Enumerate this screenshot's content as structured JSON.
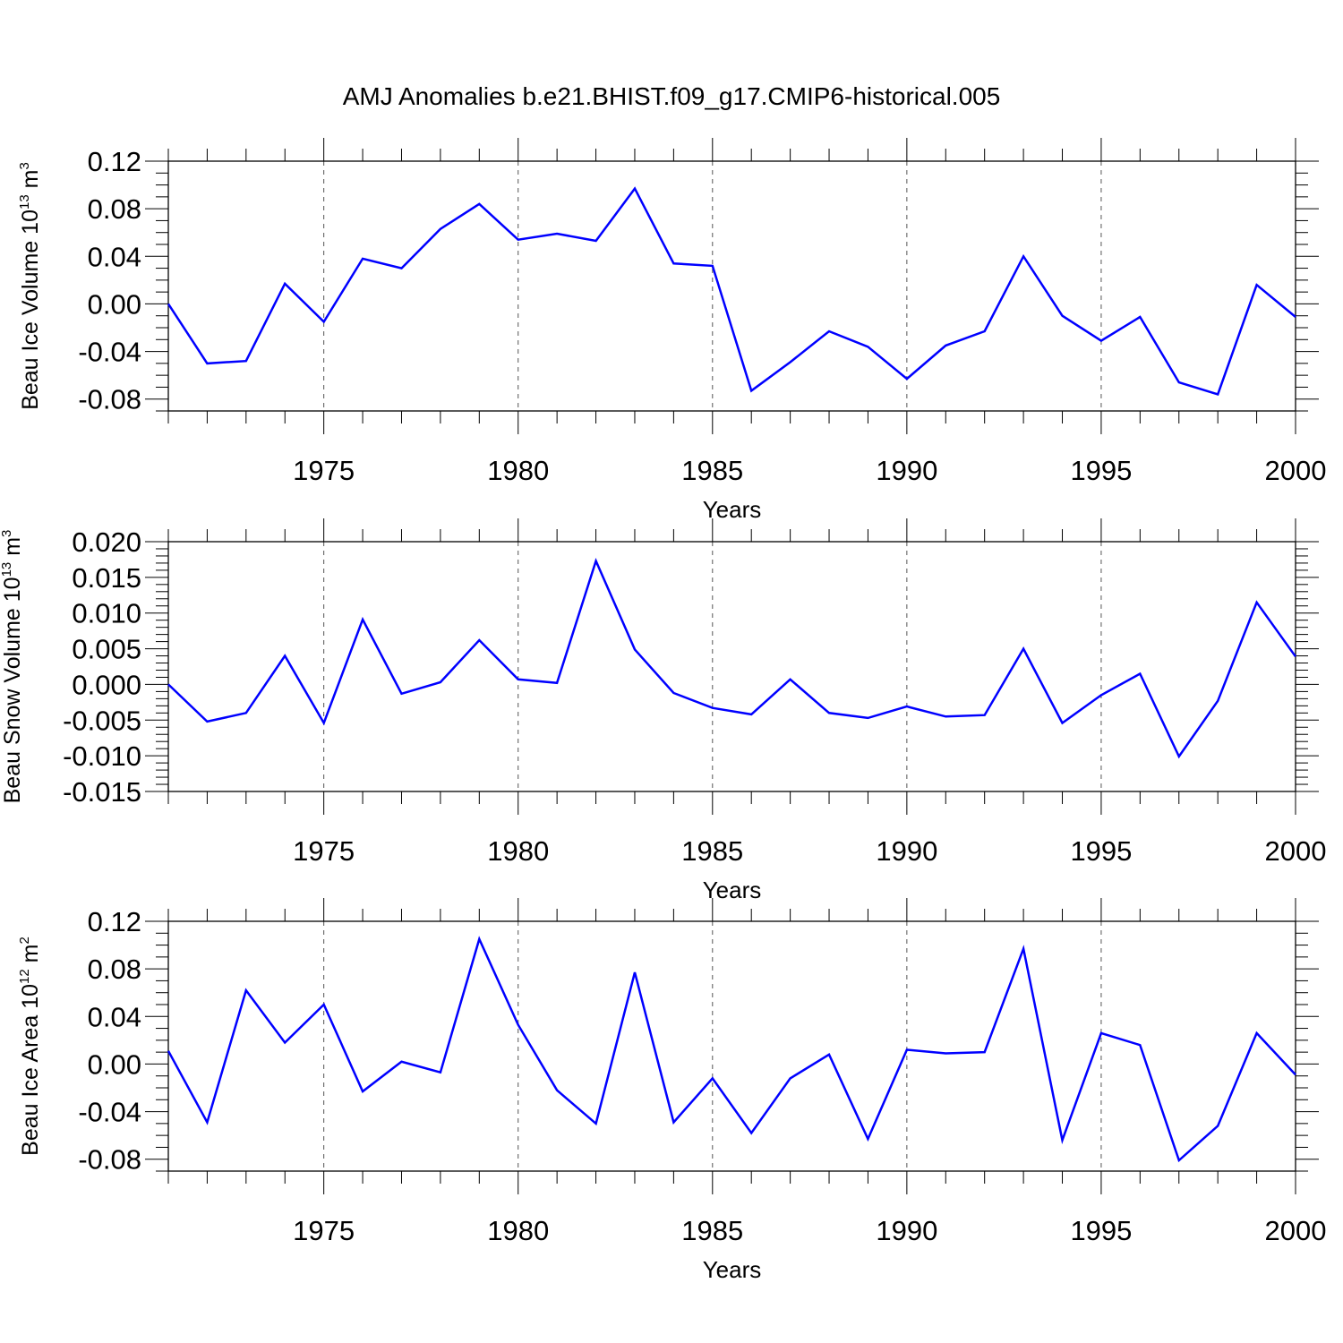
{
  "title": "AMJ Anomalies b.e21.BHIST.f09_g17.CMIP6-historical.005",
  "style": {
    "line_color": "#0000ff",
    "axis_color": "#000000",
    "grid_color": "#555555"
  },
  "chart_data": [
    {
      "type": "line",
      "title": "AMJ Anomalies b.e21.BHIST.f09_g17.CMIP6-historical.005",
      "xlabel": "Years",
      "ylabel": {
        "text": "Beau Ice Volume 10",
        "exponent": "13",
        "unit": " m",
        "unit_exponent": "3"
      },
      "xlim": [
        1971,
        2000
      ],
      "ylim": [
        -0.09,
        0.12
      ],
      "xticks": [
        1975,
        1980,
        1985,
        1990,
        1995,
        2000
      ],
      "yticks": [
        -0.08,
        -0.04,
        0.0,
        0.04,
        0.08,
        0.12
      ],
      "ytick_labels": [
        "-0.08",
        "-0.04",
        "0.00",
        "0.04",
        "0.08",
        "0.12"
      ],
      "x_minor_step": 1,
      "y_minor_step": 0.01,
      "grid": "vertical dashed at x major ticks",
      "series": [
        {
          "name": "Beau Ice Volume",
          "x": [
            1971,
            1972,
            1973,
            1974,
            1975,
            1976,
            1977,
            1978,
            1979,
            1980,
            1981,
            1982,
            1983,
            1984,
            1985,
            1986,
            1987,
            1988,
            1989,
            1990,
            1991,
            1992,
            1993,
            1994,
            1995,
            1996,
            1997,
            1998,
            1999,
            2000
          ],
          "values": [
            0.0,
            -0.05,
            -0.048,
            0.017,
            -0.015,
            0.038,
            0.03,
            0.063,
            0.084,
            0.054,
            0.059,
            0.053,
            0.097,
            0.034,
            0.032,
            -0.073,
            -0.049,
            -0.023,
            -0.036,
            -0.063,
            -0.035,
            -0.023,
            0.04,
            -0.01,
            -0.031,
            -0.011,
            -0.066,
            -0.076,
            0.016,
            -0.011
          ]
        }
      ]
    },
    {
      "type": "line",
      "xlabel": "Years",
      "ylabel": {
        "text": "Beau Snow Volume 10",
        "exponent": "13",
        "unit": " m",
        "unit_exponent": "3"
      },
      "xlim": [
        1971,
        2000
      ],
      "ylim": [
        -0.015,
        0.02
      ],
      "xticks": [
        1975,
        1980,
        1985,
        1990,
        1995,
        2000
      ],
      "yticks": [
        -0.015,
        -0.01,
        -0.005,
        0.0,
        0.005,
        0.01,
        0.015,
        0.02
      ],
      "ytick_labels": [
        "-0.015",
        "-0.010",
        "-0.005",
        "0.000",
        "0.005",
        "0.010",
        "0.015",
        "0.020"
      ],
      "x_minor_step": 1,
      "y_minor_step": 0.001,
      "grid": "vertical dashed at x major ticks",
      "series": [
        {
          "name": "Beau Snow Volume",
          "x": [
            1971,
            1972,
            1973,
            1974,
            1975,
            1976,
            1977,
            1978,
            1979,
            1980,
            1981,
            1982,
            1983,
            1984,
            1985,
            1986,
            1987,
            1988,
            1989,
            1990,
            1991,
            1992,
            1993,
            1994,
            1995,
            1996,
            1997,
            1998,
            1999,
            2000
          ],
          "values": [
            0.0,
            -0.0052,
            -0.004,
            0.004,
            -0.0054,
            0.0091,
            -0.0013,
            0.0003,
            0.0062,
            0.0007,
            0.0002,
            0.0173,
            0.0049,
            -0.0012,
            -0.0033,
            -0.0042,
            0.0007,
            -0.004,
            -0.0047,
            -0.0031,
            -0.0045,
            -0.0043,
            0.005,
            -0.0054,
            -0.0015,
            0.0015,
            -0.0101,
            -0.0023,
            0.0115,
            0.0039
          ]
        }
      ]
    },
    {
      "type": "line",
      "xlabel": "Years",
      "ylabel": {
        "text": "Beau Ice Area 10",
        "exponent": "12",
        "unit": " m",
        "unit_exponent": "2"
      },
      "xlim": [
        1971,
        2000
      ],
      "ylim": [
        -0.09,
        0.12
      ],
      "xticks": [
        1975,
        1980,
        1985,
        1990,
        1995,
        2000
      ],
      "yticks": [
        -0.08,
        -0.04,
        0.0,
        0.04,
        0.08,
        0.12
      ],
      "ytick_labels": [
        "-0.08",
        "-0.04",
        "0.00",
        "0.04",
        "0.08",
        "0.12"
      ],
      "x_minor_step": 1,
      "y_minor_step": 0.01,
      "grid": "vertical dashed at x major ticks",
      "series": [
        {
          "name": "Beau Ice Area",
          "x": [
            1971,
            1972,
            1973,
            1974,
            1975,
            1976,
            1977,
            1978,
            1979,
            1980,
            1981,
            1982,
            1983,
            1984,
            1985,
            1986,
            1987,
            1988,
            1989,
            1990,
            1991,
            1992,
            1993,
            1994,
            1995,
            1996,
            1997,
            1998,
            1999,
            2000
          ],
          "values": [
            0.011,
            -0.049,
            0.062,
            0.018,
            0.05,
            -0.023,
            0.002,
            -0.007,
            0.105,
            0.033,
            -0.022,
            -0.05,
            0.077,
            -0.049,
            -0.012,
            -0.058,
            -0.012,
            0.008,
            -0.063,
            0.012,
            0.009,
            0.01,
            0.097,
            -0.064,
            0.026,
            0.016,
            -0.081,
            -0.052,
            0.026,
            -0.009
          ]
        }
      ]
    }
  ]
}
